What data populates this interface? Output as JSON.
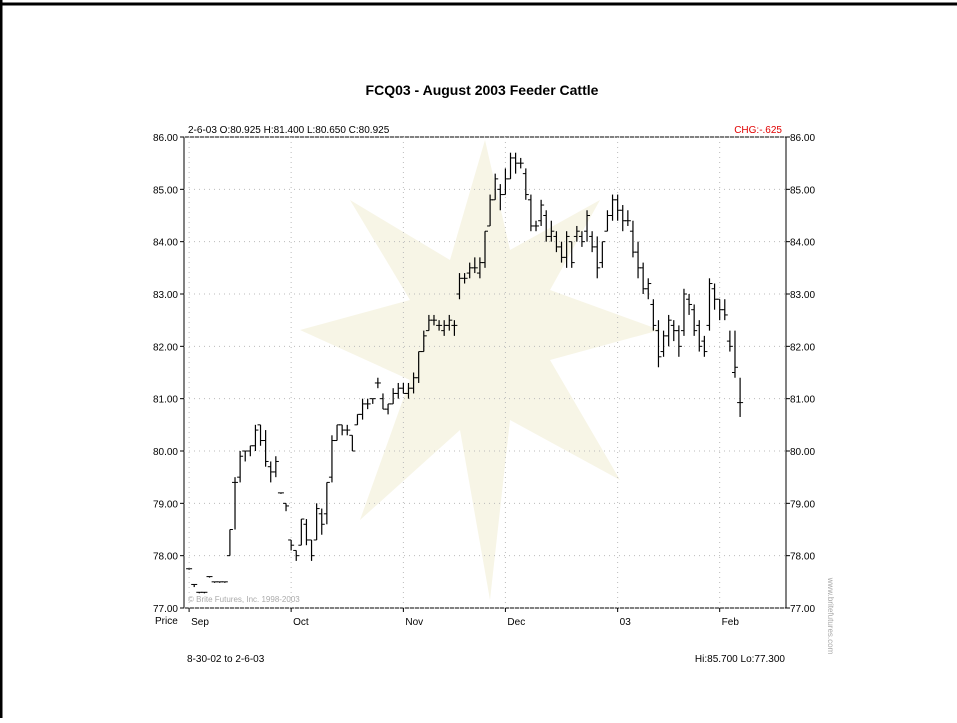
{
  "chart_data": {
    "type": "ohlc",
    "title": "FCQ03 -  August 2003 Feeder Cattle",
    "info": "2-6-03 O:80.925 H:81.400 L:80.650 C:80.925",
    "change": "CHG:-.625",
    "y_label": "Price",
    "range_text": "8-30-02 to 2-6-03",
    "hilo_text": "Hi:85.700 Lo:77.300",
    "watermark": "© Brite Futures, Inc. 1998-2003",
    "side_text": "www.britefutures.com",
    "color": "#000000",
    "grid": true,
    "xlim": [
      -1,
      117
    ],
    "xticks": [
      {
        "value": 0,
        "label": "Sep"
      },
      {
        "value": 20,
        "label": "Oct"
      },
      {
        "value": 42,
        "label": "Nov"
      },
      {
        "value": 62,
        "label": "Dec"
      },
      {
        "value": 84,
        "label": "03"
      },
      {
        "value": 104,
        "label": "Feb"
      }
    ],
    "ylim": [
      77,
      86
    ],
    "yticks": [
      {
        "value": 77,
        "label": "77.00"
      },
      {
        "value": 78,
        "label": "78.00"
      },
      {
        "value": 79,
        "label": "79.00"
      },
      {
        "value": 80,
        "label": "80.00"
      },
      {
        "value": 81,
        "label": "81.00"
      },
      {
        "value": 82,
        "label": "82.00"
      },
      {
        "value": 83,
        "label": "83.00"
      },
      {
        "value": 84,
        "label": "84.00"
      },
      {
        "value": 85,
        "label": "85.00"
      },
      {
        "value": 86,
        "label": "86.00"
      }
    ],
    "x": [
      0,
      1,
      2,
      3,
      4,
      5,
      6,
      7,
      8,
      9,
      10,
      11,
      12,
      13,
      14,
      15,
      16,
      17,
      18,
      19,
      20,
      21,
      22,
      23,
      24,
      25,
      26,
      27,
      28,
      29,
      30,
      31,
      32,
      33,
      34,
      35,
      36,
      37,
      38,
      39,
      40,
      41,
      42,
      43,
      44,
      45,
      46,
      47,
      48,
      49,
      50,
      51,
      52,
      53,
      54,
      55,
      56,
      57,
      58,
      59,
      60,
      61,
      62,
      63,
      64,
      65,
      66,
      67,
      68,
      69,
      70,
      71,
      72,
      73,
      74,
      75,
      76,
      77,
      78,
      79,
      80,
      81,
      82,
      83,
      84,
      85,
      86,
      87,
      88,
      89,
      90,
      91,
      92,
      93,
      94,
      95,
      96,
      97,
      98,
      99,
      100,
      101,
      102,
      103,
      104,
      105,
      106,
      107,
      108
    ],
    "open": [
      77.75,
      77.45,
      77.3,
      77.3,
      77.6,
      77.5,
      77.5,
      77.5,
      78.0,
      79.4,
      79.5,
      80.0,
      80.0,
      80.1,
      80.5,
      80.2,
      79.7,
      79.6,
      79.2,
      79.0,
      78.3,
      78.1,
      78.2,
      78.6,
      78.3,
      78.3,
      78.8,
      78.8,
      79.5,
      80.2,
      80.5,
      80.4,
      80.3,
      80.5,
      80.7,
      80.9,
      81.0,
      81.3,
      81.0,
      80.8,
      80.9,
      81.1,
      81.2,
      81.1,
      81.2,
      81.4,
      81.9,
      82.3,
      82.5,
      82.4,
      82.3,
      82.4,
      82.4,
      83.0,
      83.3,
      83.4,
      83.5,
      83.4,
      83.6,
      84.3,
      84.8,
      85.0,
      84.9,
      85.2,
      85.6,
      85.5,
      85.3,
      84.8,
      84.3,
      84.4,
      84.5,
      84.1,
      84.1,
      83.9,
      83.7,
      84.0,
      84.1,
      84.1,
      84.2,
      84.1,
      83.9,
      83.6,
      84.2,
      84.5,
      84.8,
      84.6,
      84.4,
      84.2,
      83.8,
      83.5,
      83.1,
      82.8,
      82.3,
      81.9,
      82.2,
      82.4,
      82.3,
      82.3,
      82.9,
      82.7,
      82.4,
      82.1,
      82.4,
      83.1,
      82.9,
      82.7,
      82.1,
      81.5,
      80.925
    ],
    "high": [
      77.75,
      77.45,
      77.3,
      77.3,
      77.6,
      77.5,
      77.5,
      77.5,
      78.5,
      79.5,
      80.0,
      80.0,
      80.1,
      80.5,
      80.5,
      80.4,
      79.8,
      79.9,
      79.2,
      79.0,
      78.3,
      78.1,
      78.7,
      78.7,
      78.3,
      79.0,
      78.9,
      79.4,
      80.3,
      80.5,
      80.5,
      80.5,
      80.3,
      80.7,
      81.0,
      81.0,
      81.0,
      81.4,
      81.1,
      80.9,
      81.2,
      81.3,
      81.3,
      81.3,
      81.5,
      81.9,
      82.3,
      82.6,
      82.6,
      82.5,
      82.5,
      82.6,
      82.5,
      83.4,
      83.4,
      83.6,
      83.7,
      83.7,
      84.2,
      84.9,
      85.3,
      85.1,
      85.4,
      85.7,
      85.7,
      85.6,
      85.4,
      84.9,
      84.4,
      84.8,
      84.6,
      84.4,
      84.2,
      84.0,
      84.2,
      84.0,
      84.3,
      84.2,
      84.6,
      84.2,
      84.1,
      84.0,
      84.6,
      84.9,
      84.9,
      84.7,
      84.6,
      84.4,
      84.0,
      83.6,
      83.3,
      82.9,
      82.5,
      82.3,
      82.6,
      82.5,
      82.4,
      83.1,
      83.0,
      82.8,
      82.5,
      82.2,
      83.3,
      83.2,
      82.9,
      82.9,
      82.3,
      82.3,
      81.4
    ],
    "low": [
      77.75,
      77.4,
      77.3,
      77.3,
      77.6,
      77.5,
      77.5,
      77.5,
      78.0,
      78.5,
      79.4,
      79.8,
      79.9,
      80.0,
      80.1,
      79.7,
      79.4,
      79.5,
      79.2,
      78.85,
      78.1,
      77.9,
      78.2,
      78.2,
      77.9,
      78.3,
      78.4,
      78.6,
      79.4,
      80.2,
      80.3,
      80.3,
      80.0,
      80.5,
      80.6,
      80.8,
      80.9,
      81.2,
      80.8,
      80.7,
      80.9,
      81.0,
      81.1,
      81.0,
      81.1,
      81.3,
      81.9,
      82.3,
      82.4,
      82.3,
      82.2,
      82.3,
      82.2,
      82.9,
      83.2,
      83.3,
      83.4,
      83.3,
      83.5,
      84.3,
      84.8,
      84.6,
      84.9,
      85.2,
      85.3,
      85.4,
      84.8,
      84.2,
      84.2,
      84.3,
      84.0,
      84.0,
      83.8,
      83.6,
      83.5,
      83.5,
      84.0,
      83.9,
      84.0,
      83.8,
      83.3,
      83.5,
      84.2,
      84.4,
      84.4,
      84.2,
      84.3,
      83.7,
      83.3,
      83.0,
      82.9,
      82.3,
      81.6,
      81.8,
      82.0,
      82.1,
      81.8,
      82.2,
      82.6,
      82.2,
      81.9,
      81.8,
      82.3,
      82.7,
      82.5,
      82.5,
      81.9,
      81.4,
      80.65
    ],
    "close": [
      77.75,
      77.45,
      77.3,
      77.3,
      77.6,
      77.5,
      77.5,
      77.5,
      78.5,
      79.4,
      79.9,
      80.0,
      80.1,
      80.4,
      80.2,
      79.8,
      79.6,
      79.8,
      79.2,
      78.95,
      78.2,
      78.0,
      78.7,
      78.3,
      78.0,
      78.9,
      78.6,
      79.4,
      80.2,
      80.5,
      80.4,
      80.4,
      80.0,
      80.7,
      80.9,
      80.9,
      81.0,
      81.3,
      80.8,
      80.9,
      81.1,
      81.2,
      81.1,
      81.2,
      81.4,
      81.9,
      82.2,
      82.5,
      82.5,
      82.4,
      82.4,
      82.5,
      82.4,
      83.3,
      83.3,
      83.5,
      83.5,
      83.6,
      84.2,
      84.8,
      85.2,
      84.9,
      85.2,
      85.6,
      85.5,
      85.5,
      84.9,
      84.3,
      84.3,
      84.7,
      84.1,
      84.2,
      83.9,
      83.7,
      84.1,
      83.6,
      84.2,
      84.0,
      84.5,
      83.9,
      83.5,
      84.0,
      84.5,
      84.8,
      84.6,
      84.4,
      84.4,
      83.8,
      83.5,
      83.1,
      83.2,
      82.4,
      81.8,
      82.2,
      82.5,
      82.3,
      82.0,
      83.0,
      82.8,
      82.3,
      82.0,
      81.9,
      83.2,
      82.9,
      82.7,
      82.6,
      82.0,
      81.6,
      80.925
    ]
  }
}
